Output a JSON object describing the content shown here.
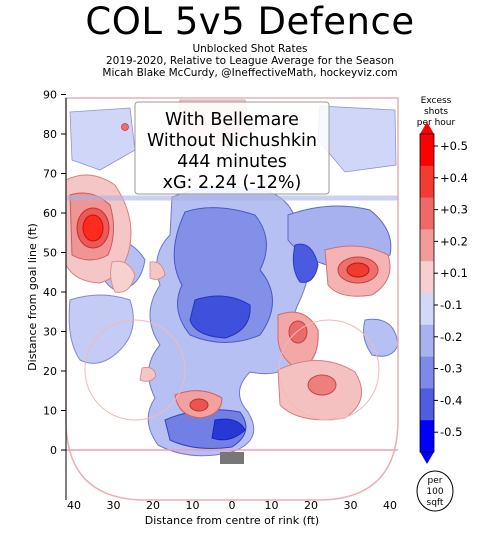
{
  "title": "COL 5v5 Defence",
  "subtitle_lines": [
    "Unblocked Shot Rates",
    "2019-2020, Relative to League Average for the Season",
    "Micah Blake McCurdy, @IneffectiveMath, hockeyviz.com"
  ],
  "colors": {
    "positive": "#e8312b",
    "negative": "#1f2fe0",
    "rink_line": "#f0a0a8",
    "blue_line": "#a9b4e6",
    "net": "#777777"
  },
  "chart_data": {
    "type": "heatmap",
    "title": "COL 5v5 Defence",
    "xlabel": "Distance from centre of rink (ft)",
    "ylabel": "Distance from goal line (ft)",
    "xlim": [
      42,
      -42
    ],
    "ylim": [
      -12,
      90
    ],
    "xticks": [
      40,
      30,
      20,
      10,
      0,
      10,
      20,
      30,
      40
    ],
    "yticks": [
      0,
      10,
      20,
      30,
      40,
      50,
      60,
      70,
      80,
      90
    ],
    "colorbar": {
      "title": [
        "Excess",
        "shots",
        "per hour"
      ],
      "ticks": [
        "+0.5",
        "+0.4",
        "+0.3",
        "+0.2",
        "+0.1",
        "-0.1",
        "-0.2",
        "-0.3",
        "-0.4",
        "-0.5"
      ],
      "units_badge": [
        "per",
        "100",
        "sqft"
      ]
    },
    "annotation_lines": [
      "With Bellemare",
      "Without Nichushkin",
      "444 minutes",
      "xG: 2.24 (-12%)"
    ],
    "hotspots": [
      {
        "x": 35,
        "y": 56,
        "value": 0.5,
        "rx": 7,
        "ry": 9
      },
      {
        "x": 33,
        "y": 45,
        "value": 0.3,
        "rx": 6,
        "ry": 4
      },
      {
        "x": 22,
        "y": 29,
        "value": 0.2,
        "rx": 5,
        "ry": 7
      },
      {
        "x": 12,
        "y": 11,
        "value": 0.2,
        "rx": 6,
        "ry": 3
      },
      {
        "x": 28,
        "y": 19,
        "value": 0.2,
        "rx": 5,
        "ry": 4
      },
      {
        "x": 5,
        "y": 30,
        "value": -0.4,
        "rx": 9,
        "ry": 8
      },
      {
        "x": 0,
        "y": 10,
        "value": -0.4,
        "rx": 8,
        "ry": 5
      }
    ]
  }
}
